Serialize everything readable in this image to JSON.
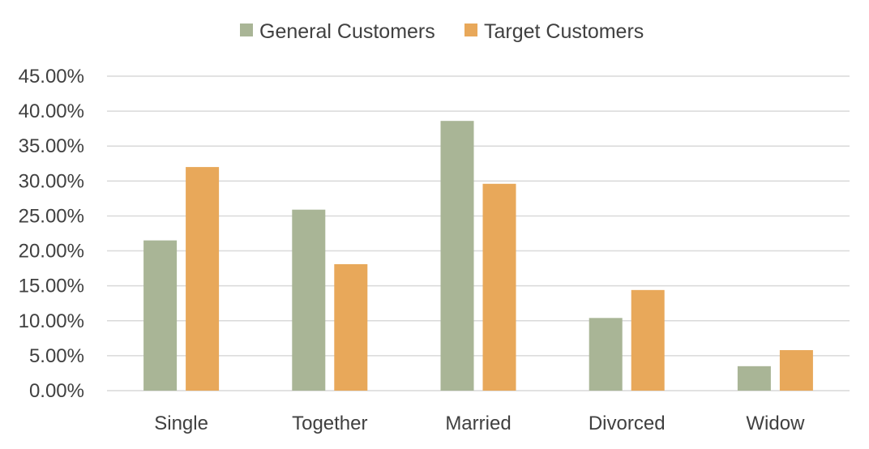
{
  "chart_data": {
    "type": "bar",
    "title": "",
    "xlabel": "",
    "ylabel": "",
    "categories": [
      "Single",
      "Together",
      "Married",
      "Divorced",
      "Widow"
    ],
    "series": [
      {
        "name": "General Customers",
        "color": "#a9b596",
        "values": [
          21.5,
          25.9,
          38.6,
          10.4,
          3.5
        ]
      },
      {
        "name": "Target Customers",
        "color": "#e8a85a",
        "values": [
          32.0,
          18.1,
          29.6,
          14.4,
          5.8
        ]
      }
    ],
    "ylim": [
      0,
      45
    ],
    "yticks": [
      0,
      5,
      10,
      15,
      20,
      25,
      30,
      35,
      40,
      45
    ],
    "ytick_labels": [
      "0.00%",
      "5.00%",
      "10.00%",
      "15.00%",
      "20.00%",
      "25.00%",
      "30.00%",
      "35.00%",
      "40.00%",
      "45.00%"
    ],
    "grid": true,
    "gridline_color": "#d9d9d9",
    "legend_position": "top-center"
  }
}
